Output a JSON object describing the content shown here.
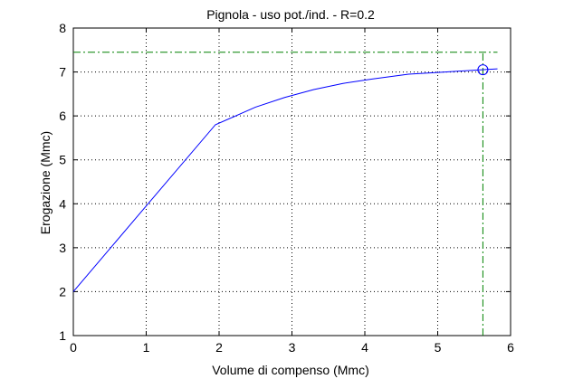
{
  "chart_data": {
    "type": "line",
    "title": "Pignola  -  uso pot./ind.  -   R=0.2",
    "xlabel": "Volume di compenso (Mmc)",
    "ylabel": "Erogazione (Mmc)",
    "xlim": [
      0,
      6
    ],
    "ylim": [
      1,
      8
    ],
    "xticks": [
      0,
      1,
      2,
      3,
      4,
      5,
      6
    ],
    "yticks": [
      1,
      2,
      3,
      4,
      5,
      6,
      7,
      8
    ],
    "grid": true,
    "legend": false,
    "series": [
      {
        "style": "solid",
        "color": "#0000ff",
        "x": [
          0,
          1.0,
          1.95,
          2.2,
          2.5,
          2.9,
          3.3,
          3.7,
          4.1,
          4.6,
          5.1,
          5.5,
          5.82
        ],
        "y": [
          2.0,
          3.95,
          5.8,
          5.98,
          6.2,
          6.42,
          6.6,
          6.74,
          6.84,
          6.95,
          7.0,
          7.04,
          7.07
        ]
      }
    ],
    "reference_lines": {
      "color": "#008000",
      "style": "dash-dot",
      "horizontal_y": 7.45,
      "horizontal_x_range": [
        0,
        5.82
      ],
      "vertical_x": 5.62,
      "vertical_y_range": [
        1,
        7.45
      ]
    },
    "marker": {
      "shape": "circle",
      "color": "#0000ff",
      "x": 5.62,
      "y": 7.05
    }
  }
}
